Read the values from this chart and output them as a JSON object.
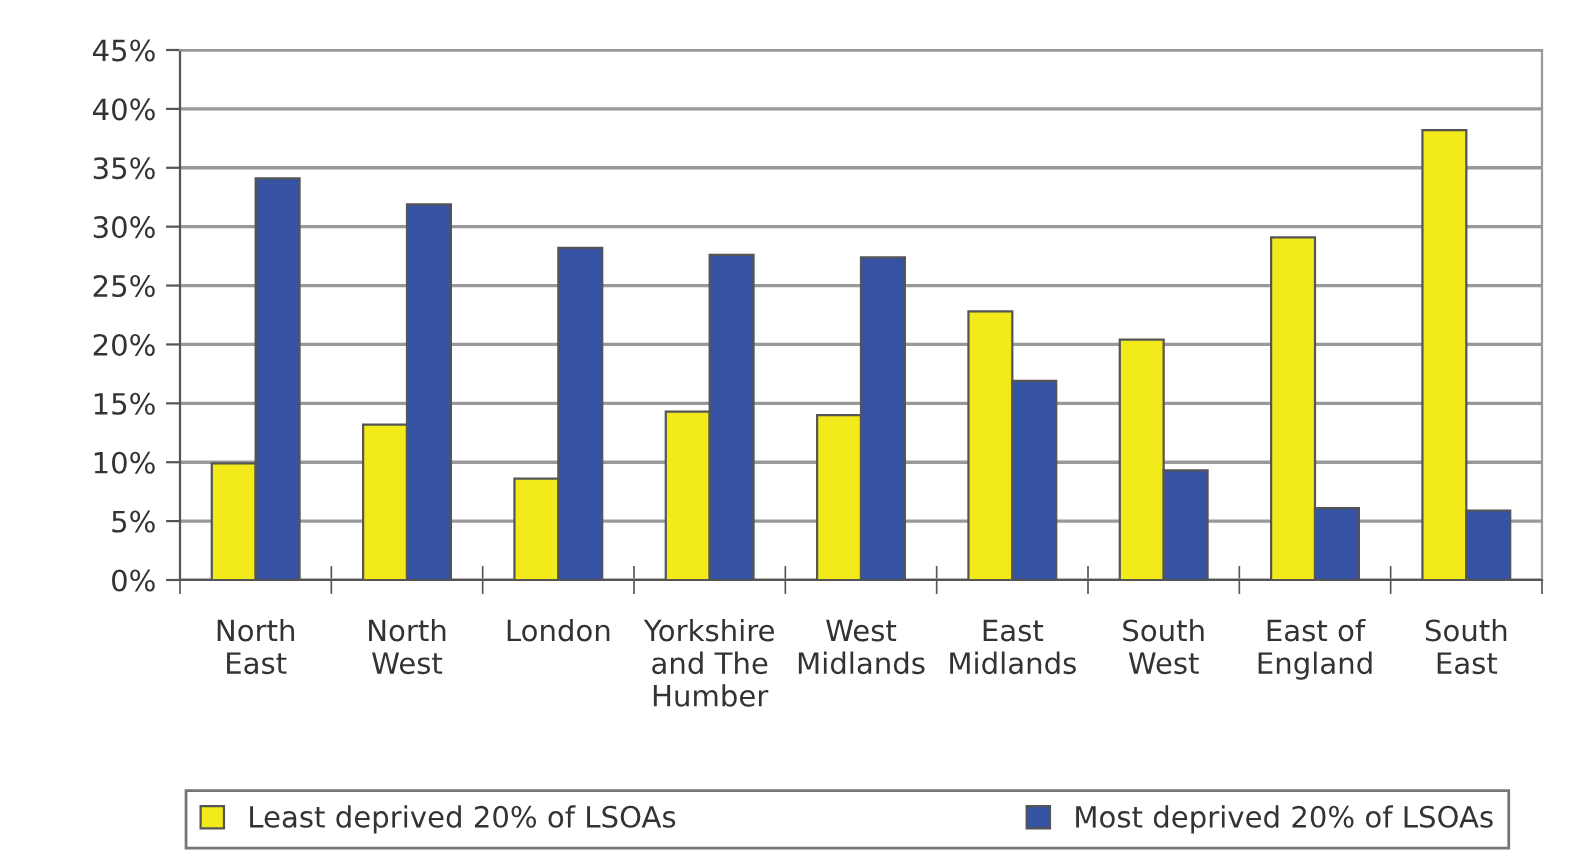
{
  "chart_data": {
    "type": "bar",
    "categories": [
      "North\nEast",
      "North\nWest",
      "London",
      "Yorkshire\nand The\nHumber",
      "West\nMidlands",
      "East\nMidlands",
      "South\nWest",
      "East of\nEngland",
      "South\nEast"
    ],
    "series": [
      {
        "name": "Least deprived 20% of LSOAs",
        "color": "#f2ea1a",
        "values": [
          9.9,
          13.2,
          8.6,
          14.3,
          14.0,
          22.8,
          20.4,
          29.1,
          38.2
        ]
      },
      {
        "name": "Most deprived 20% of LSOAs",
        "color": "#3552a3",
        "values": [
          34.1,
          31.9,
          28.2,
          27.6,
          27.4,
          16.9,
          9.3,
          6.1,
          5.9
        ]
      }
    ],
    "ylim": [
      0,
      45
    ],
    "yticks": [
      {
        "value": 0,
        "label": "0%"
      },
      {
        "value": 5,
        "label": "5%"
      },
      {
        "value": 10,
        "label": "10%"
      },
      {
        "value": 15,
        "label": "15%"
      },
      {
        "value": 20,
        "label": "20%"
      },
      {
        "value": 25,
        "label": "25%"
      },
      {
        "value": 30,
        "label": "30%"
      },
      {
        "value": 35,
        "label": "35%"
      },
      {
        "value": 40,
        "label": "40%"
      },
      {
        "value": 45,
        "label": "45%"
      }
    ],
    "grid": "y",
    "legend": "bottom"
  }
}
